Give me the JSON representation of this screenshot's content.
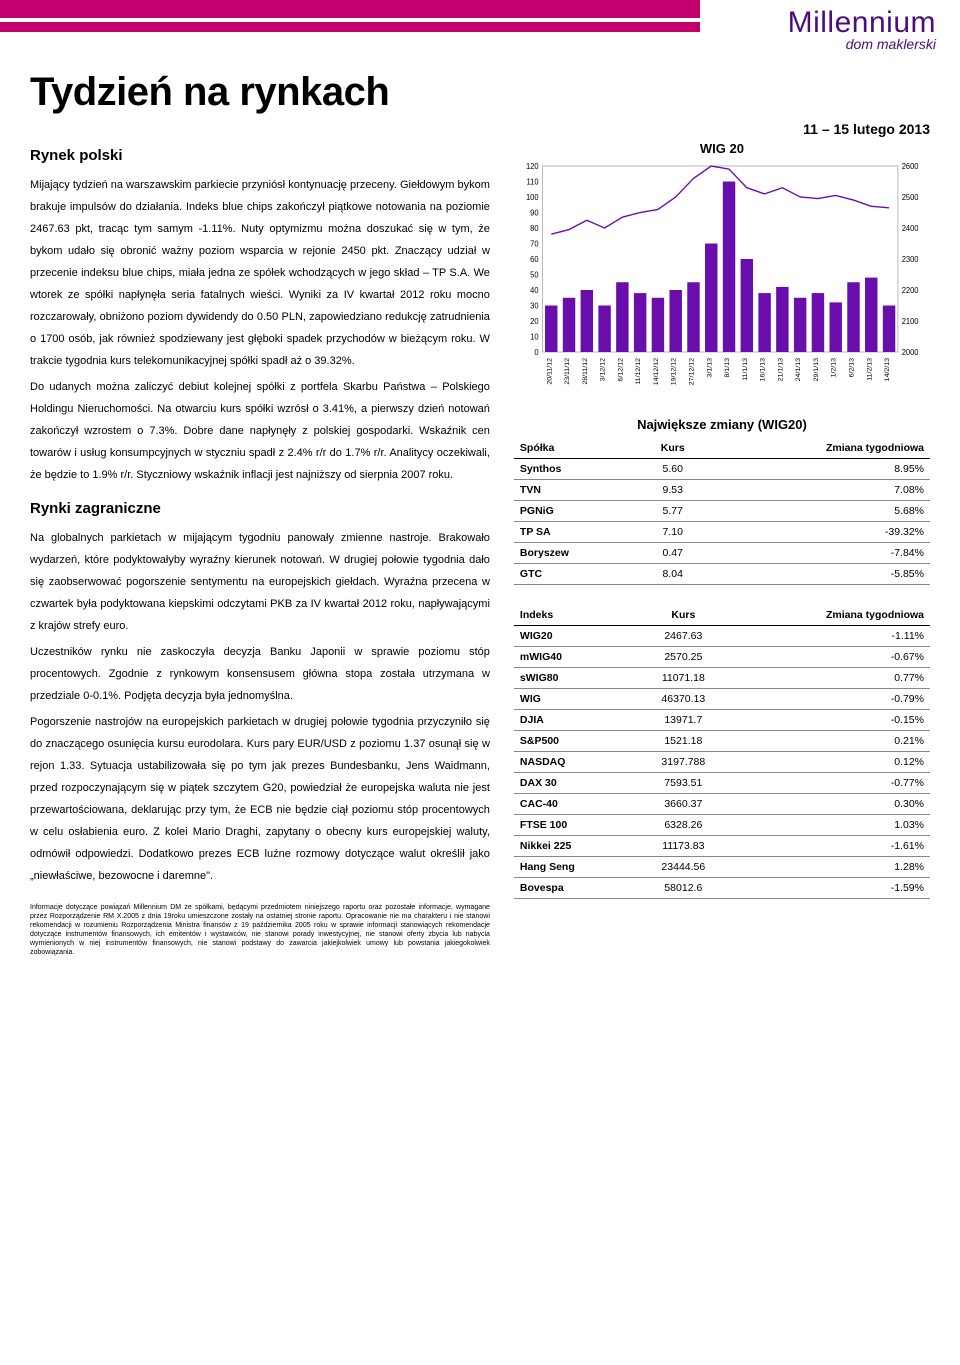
{
  "logo": {
    "name": "Millennium",
    "subtitle": "dom maklerski"
  },
  "main_title": "Tydzień na rynkach",
  "date_range": "11 – 15 lutego 2013",
  "left": {
    "section1_title": "Rynek polski",
    "section1_body": "Mijający tydzień na warszawskim parkiecie przyniósł kontynuację przeceny. Giełdowym bykom brakuje impulsów do działania. Indeks blue chips zakończył piątkowe notowania na poziomie 2467.63 pkt, tracąc tym samym -1.11%. Nuty optymizmu można doszukać się w tym, że bykom udało się obronić ważny poziom wsparcia w rejonie 2450 pkt. Znaczący udział w przecenie indeksu blue chips, miała jedna ze spółek wchodzących w jego skład – TP S.A. We wtorek ze spółki napłynęła seria fatalnych wieści. Wyniki za IV kwartał 2012 roku mocno rozczarowały, obniżono poziom dywidendy do 0.50 PLN, zapowiedziano redukcję zatrudnienia o 1700 osób, jak również spodziewany jest głęboki spadek przychodów w bieżącym roku. W trakcie tygodnia kurs telekomunikacyjnej spółki spadł aż o 39.32%.",
    "section1_body2": "Do udanych można zaliczyć debiut kolejnej spółki z portfela Skarbu Państwa – Polskiego Holdingu Nieruchomości. Na otwarciu kurs spółki wzrósł o 3.41%, a pierwszy dzień notowań zakończył wzrostem o 7.3%. Dobre dane napłynęły z polskiej gospodarki. Wskaźnik cen towarów i usług konsumpcyjnych w styczniu spadł z 2.4% r/r do 1.7% r/r. Analitycy oczekiwali, że będzie to 1.9% r/r. Styczniowy wskaźnik inflacji jest najniższy od sierpnia 2007 roku.",
    "section2_title": "Rynki zagraniczne",
    "section2_body": "Na globalnych parkietach w mijającym tygodniu panowały zmienne nastroje. Brakowało wydarzeń, które podyktowałyby wyraźny kierunek notowań. W drugiej połowie tygodnia dało się zaobserwować pogorszenie sentymentu na europejskich giełdach. Wyraźna przecena w czwartek była podyktowana kiepskimi odczytami PKB za IV kwartał 2012 roku, napływającymi z krajów strefy euro.",
    "section2_body2": "Uczestników rynku nie zaskoczyła decyzja Banku Japonii w sprawie poziomu stóp procentowych. Zgodnie z rynkowym konsensusem główna stopa została utrzymana w przedziale 0-0.1%. Podjęta decyzja była jednomyślna.",
    "section2_body3": "Pogorszenie nastrojów na europejskich parkietach w drugiej połowie tygodnia przyczyniło się do znaczącego osunięcia kursu eurodolara. Kurs pary EUR/USD z poziomu 1.37 osunął się w rejon 1.33. Sytuacja ustabilizowała się po tym jak prezes Bundesbanku, Jens Waidmann, przed rozpoczynającym się w piątek szczytem G20, powiedział że europejska waluta nie jest przewartościowana, deklarując przy tym, że ECB nie będzie ciął poziomu stóp procentowych w celu osłabienia euro. Z kolei Mario Draghi, zapytany o obecny kurs europejskiej waluty, odmówił odpowiedzi. Dodatkowo prezes ECB luźne rozmowy dotyczące walut określił jako „niewłaściwe, bezowocne i daremne\"."
  },
  "chart": {
    "title": "WIG 20",
    "type": "line_with_bars",
    "left_axis": {
      "min": 0,
      "max": 120,
      "step": 10,
      "ticks": [
        0,
        10,
        20,
        30,
        40,
        50,
        60,
        70,
        80,
        90,
        100,
        110,
        120
      ]
    },
    "right_axis": {
      "min": 2000,
      "max": 2600,
      "step": 100,
      "ticks": [
        2000,
        2100,
        2200,
        2300,
        2400,
        2500,
        2600
      ]
    },
    "x_labels": [
      "20/11/12",
      "23/11/12",
      "28/11/12",
      "3/12/12",
      "6/12/12",
      "11/12/12",
      "14/12/12",
      "19/12/12",
      "27/12/12",
      "3/1/13",
      "8/1/13",
      "11/1/13",
      "16/1/13",
      "21/1/13",
      "24/1/13",
      "29/1/13",
      "1/2/13",
      "6/2/13",
      "11/2/13",
      "14/2/13"
    ],
    "line_color": "#6a0dad",
    "bar_color": "#6a0dad",
    "grid_color": "#cccccc",
    "background_color": "#ffffff",
    "x_label_fontsize": 7,
    "axis_fontsize": 8,
    "line_values": [
      2380,
      2395,
      2425,
      2400,
      2435,
      2450,
      2460,
      2500,
      2560,
      2600,
      2590,
      2530,
      2510,
      2530,
      2500,
      2495,
      2505,
      2490,
      2470,
      2465
    ],
    "bar_values": [
      30,
      35,
      40,
      30,
      45,
      38,
      35,
      40,
      45,
      70,
      110,
      60,
      38,
      42,
      35,
      38,
      32,
      45,
      48,
      30
    ]
  },
  "table1": {
    "title": "Największe zmiany (WIG20)",
    "headers": [
      "Spółka",
      "Kurs",
      "Zmiana tygodniowa"
    ],
    "rows": [
      [
        "Synthos",
        "5.60",
        "8.95%"
      ],
      [
        "TVN",
        "9.53",
        "7.08%"
      ],
      [
        "PGNiG",
        "5.77",
        "5.68%"
      ],
      [
        "TP SA",
        "7.10",
        "-39.32%"
      ],
      [
        "Boryszew",
        "0.47",
        "-7.84%"
      ],
      [
        "GTC",
        "8.04",
        "-5.85%"
      ]
    ]
  },
  "table2": {
    "headers": [
      "Indeks",
      "Kurs",
      "Zmiana tygodniowa"
    ],
    "rows": [
      [
        "WIG20",
        "2467.63",
        "-1.11%"
      ],
      [
        "mWIG40",
        "2570.25",
        "-0.67%"
      ],
      [
        "sWIG80",
        "11071.18",
        "0.77%"
      ],
      [
        "WIG",
        "46370.13",
        "-0.79%"
      ],
      [
        "DJIA",
        "13971.7",
        "-0.15%"
      ],
      [
        "S&P500",
        "1521.18",
        "0.21%"
      ],
      [
        "NASDAQ",
        "3197.788",
        "0.12%"
      ],
      [
        "DAX 30",
        "7593.51",
        "-0.77%"
      ],
      [
        "CAC-40",
        "3660.37",
        "0.30%"
      ],
      [
        "FTSE 100",
        "6328.26",
        "1.03%"
      ],
      [
        "Nikkei 225",
        "11173.83",
        "-1.61%"
      ],
      [
        "Hang Seng",
        "23444.56",
        "1.28%"
      ],
      [
        "Bovespa",
        "58012.6",
        "-1.59%"
      ]
    ]
  },
  "disclaimer": "Informacje dotyczące powiązań Millennium DM ze spółkami, będącymi przedmiotem niniejszego raportu oraz pozostałe informacje, wymagane przez Rozporządzenie RM X.2005 z dnia 19roku umieszczone zostały na ostatniej stronie raportu. Opracowanie nie ma charakteru i nie stanowi rekomendacji w rozumieniu Rozporządzenia Ministra finansów z 19 października 2005 roku w sprawie informacji stanowiących rekomendacje dotyczące instrumentów finansowych, ich emitentów i wystawców, nie stanowi porady inwestycyjnej, nie stanowi oferty zbycia lub nabycia wymienionych w niej instrumentów finansowych, nie stanowi podstawy do zawarcia jakiejkolwiek umowy lub powstania jakiegokolwiek zobowiązania."
}
